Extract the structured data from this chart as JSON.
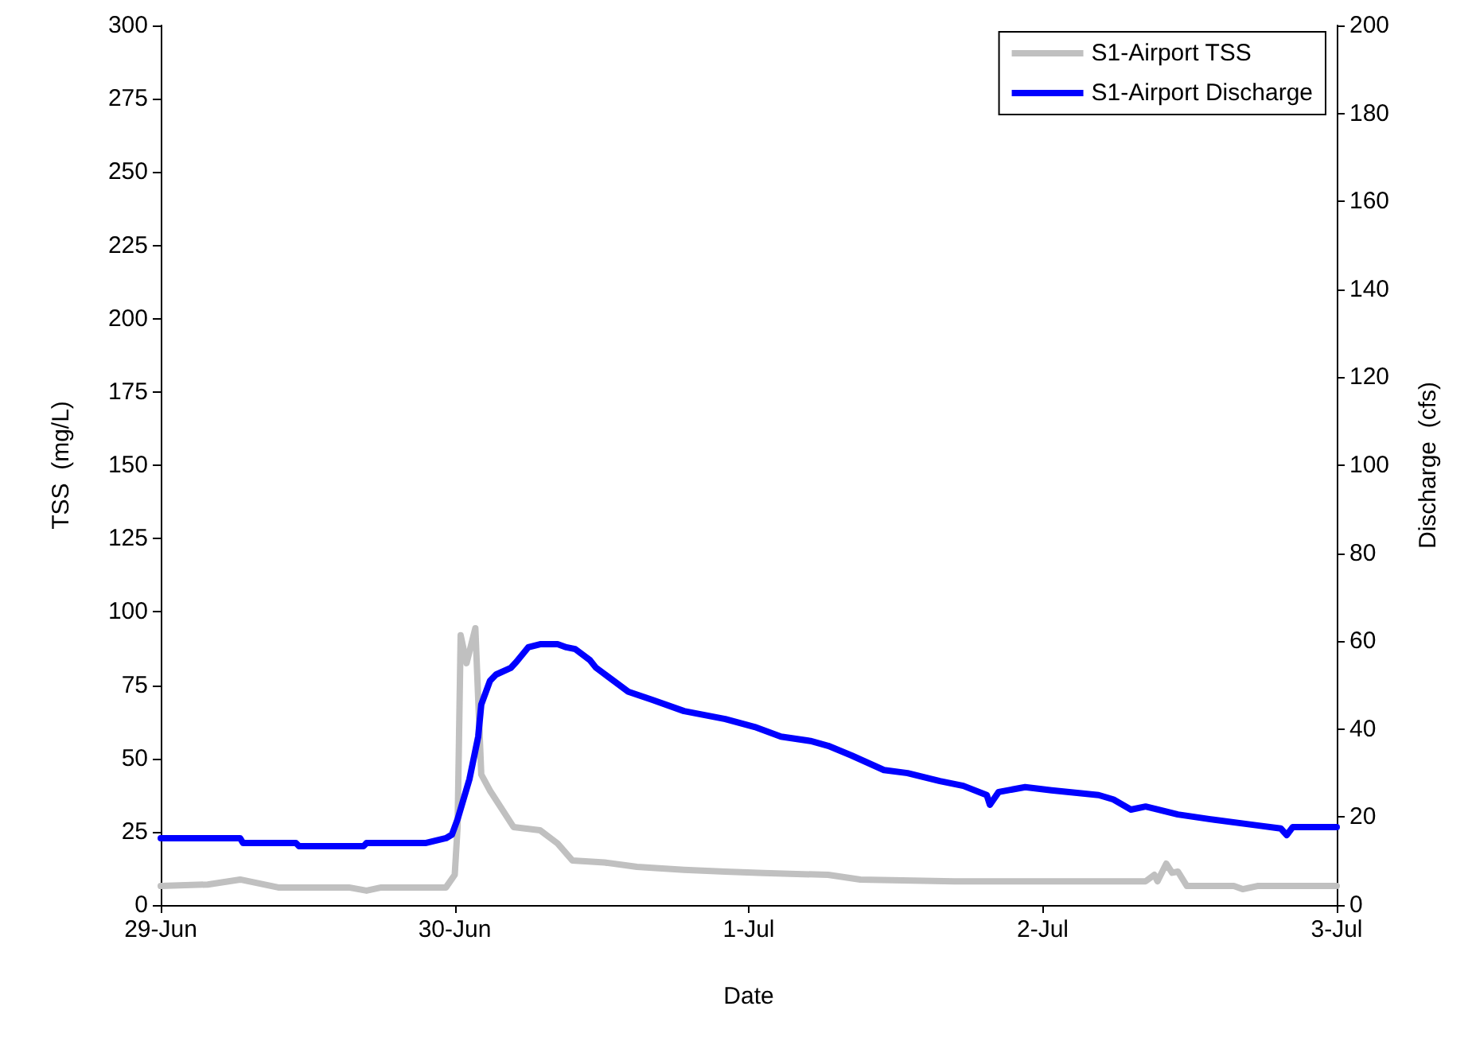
{
  "chart_data": {
    "type": "line",
    "xlabel": "Date",
    "ylabel": "TSS  (mg/L)",
    "y2label": "Discharge  (cfs)",
    "xlim": [
      "--06-29",
      "--07-03"
    ],
    "xticks": [
      {
        "value": "--06-29",
        "label": "29-Jun"
      },
      {
        "value": "--06-30",
        "label": "30-Jun"
      },
      {
        "value": "--07-01",
        "label": "1-Jul"
      },
      {
        "value": "--07-02",
        "label": "2-Jul"
      },
      {
        "value": "--07-03",
        "label": "3-Jul"
      }
    ],
    "ylim": [
      0,
      300
    ],
    "yticks": [
      0,
      25,
      50,
      75,
      100,
      125,
      150,
      175,
      200,
      225,
      250,
      275,
      300
    ],
    "y2lim": [
      0,
      200
    ],
    "y2ticks": [
      0,
      20,
      40,
      60,
      80,
      100,
      120,
      140,
      160,
      180,
      200
    ],
    "legend": "top right",
    "grid": false,
    "marker": "none",
    "line_style": "solid",
    "series": [
      {
        "name": "S1-Airport TSS",
        "color": "#c0c0c0",
        "x": [
          "--06-29T00:00",
          "--06-29T03:50",
          "--06-29T06:29",
          "--06-29T09:36",
          "--06-29T15:22",
          "--06-29T16:48",
          "--06-29T18:00",
          "--06-29T23:17",
          "--06-30T00:00",
          "--06-30T00:14",
          "--06-30T00:29",
          "--06-30T00:58",
          "--06-30T01:41",
          "--06-30T02:10",
          "--06-30T02:53",
          "--06-30T04:48",
          "--06-30T06:58",
          "--06-30T08:24",
          "--06-30T09:36",
          "--06-30T12:14",
          "--06-30T14:53",
          "--06-30T18:43",
          "--06-30T22:05",
          "--07-01T01:12",
          "--07-01T06:29",
          "--07-01T09:07",
          "--07-01T16:48",
          "--07-02T08:24",
          "--07-02T09:07",
          "--07-02T09:22",
          "--07-02T10:05",
          "--07-02T10:34",
          "--07-02T11:02",
          "--07-02T11:46",
          "--07-02T15:36",
          "--07-02T16:19",
          "--07-02T17:31",
          "--07-03T00:00"
        ],
        "values": [
          6.5,
          7,
          8.7,
          6,
          6,
          4.9,
          6,
          6,
          10.3,
          26.6,
          92,
          82.5,
          94.4,
          44.5,
          39,
          26.6,
          25.5,
          21,
          15.2,
          14.5,
          13,
          12,
          11.4,
          10.9,
          10.3,
          8.7,
          8.1,
          8.1,
          10.3,
          8.1,
          14.1,
          11,
          11.4,
          6.5,
          6.5,
          5.4,
          6.5,
          6.5
        ]
      },
      {
        "name": "S1-Airport Discharge",
        "color": "#0000ff",
        "axis": "y2",
        "x": [
          "--06-29T00:00",
          "--06-29T06:29",
          "--06-29T06:43",
          "--06-29T11:02",
          "--06-29T11:17",
          "--06-29T16:34",
          "--06-29T16:48",
          "--06-29T21:36",
          "--06-29T23:17",
          "--06-29T23:46",
          "--06-30T00:14",
          "--06-30T01:12",
          "--06-30T01:55",
          "--06-30T02:10",
          "--06-30T02:53",
          "--06-30T03:22",
          "--06-30T04:34",
          "--06-30T05:02",
          "--06-30T06:00",
          "--06-30T06:58",
          "--06-30T08:24",
          "--06-30T09:07",
          "--06-30T09:50",
          "--06-30T11:02",
          "--06-30T11:31",
          "--06-30T12:58",
          "--06-30T14:10",
          "--06-30T16:05",
          "--06-30T18:43",
          "--06-30T22:05",
          "--07-01T00:29",
          "--07-01T02:38",
          "--07-01T05:02",
          "--07-01T06:29",
          "--07-01T08:24",
          "--07-01T11:02",
          "--07-01T12:58",
          "--07-01T15:36",
          "--07-01T17:31",
          "--07-01T19:26",
          "--07-01T19:41",
          "--07-01T20:24",
          "--07-01T22:34",
          "--07-02T00:43",
          "--07-02T04:34",
          "--07-02T05:46",
          "--07-02T07:12",
          "--07-02T08:24",
          "--07-02T11:02",
          "--07-02T13:41",
          "--07-02T17:31",
          "--07-02T19:26",
          "--07-02T19:55",
          "--07-02T20:24",
          "--07-03T00:00"
        ],
        "values": [
          15.2,
          15.2,
          14.1,
          14.1,
          13.4,
          13.4,
          14.1,
          14.1,
          15.2,
          16,
          19.5,
          28.6,
          38.3,
          45.6,
          51,
          52.4,
          53.9,
          55.3,
          58.6,
          59.3,
          59.3,
          58.6,
          58.2,
          55.7,
          54,
          51,
          48.5,
          46.7,
          44.1,
          42.3,
          40.5,
          38.3,
          37.3,
          36.2,
          34,
          30.7,
          30,
          28.2,
          27.1,
          25,
          22.8,
          25.7,
          26.8,
          26.1,
          25,
          24,
          21.7,
          22.4,
          20.6,
          19.5,
          18.1,
          17.4,
          15.9,
          17.7,
          17.7
        ]
      }
    ]
  }
}
